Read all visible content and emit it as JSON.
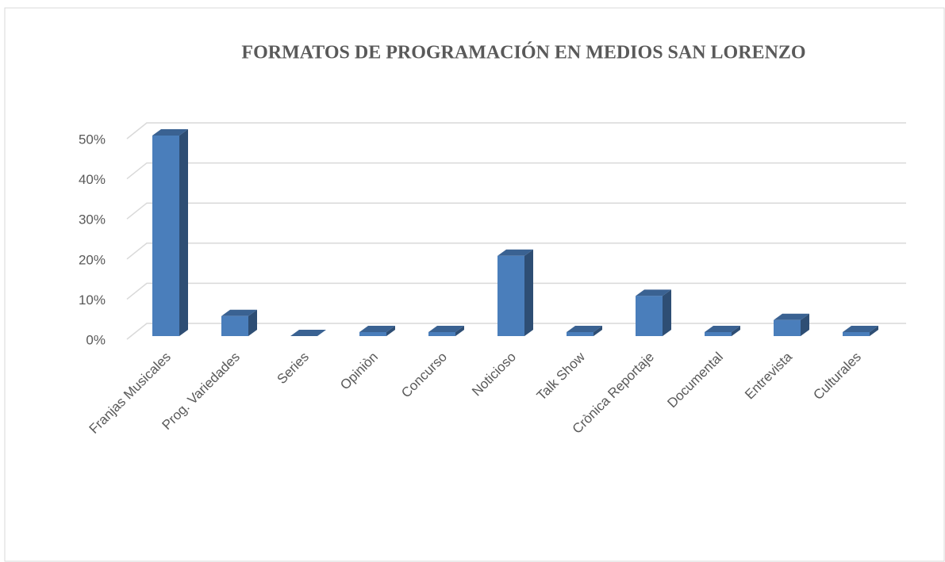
{
  "chart_data": {
    "type": "bar3d",
    "title": "FORMATOS DE PROGRAMACIÓN EN MEDIOS SAN LORENZO",
    "categories": [
      "Franjas Musicales",
      "Prog. Variedades",
      "Series",
      "Opiniòn",
      "Concurso",
      "Noticioso",
      "Talk Show",
      "Crònica Reportaje",
      "Documental",
      "Entrevista",
      "Culturales"
    ],
    "values": [
      50,
      5,
      0,
      1,
      1,
      20,
      1,
      10,
      1,
      4,
      1
    ],
    "color": "#4a7ebb",
    "ylim": [
      0,
      50
    ],
    "yticks": [
      {
        "value": 0,
        "label": "0%"
      },
      {
        "value": 10,
        "label": "10%"
      },
      {
        "value": 20,
        "label": "20%"
      },
      {
        "value": 30,
        "label": "30%"
      },
      {
        "value": 40,
        "label": "40%"
      },
      {
        "value": 50,
        "label": "50%"
      }
    ],
    "grid": true
  }
}
